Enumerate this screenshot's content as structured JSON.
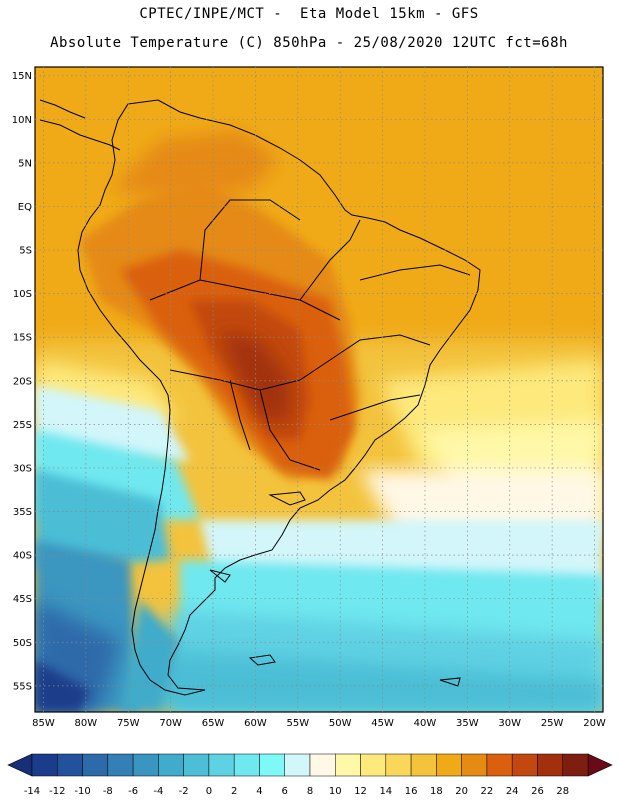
{
  "header": {
    "line1": "CPTEC/INPE/MCT -  Eta Model 15km - GFS",
    "line2": "Absolute Temperature (C) 850hPa - 25/08/2020 12UTC fct=68h"
  },
  "map": {
    "lat_labels": [
      "15N",
      "10N",
      "5N",
      "EQ",
      "5S",
      "10S",
      "15S",
      "20S",
      "25S",
      "30S",
      "35S",
      "40S",
      "45S",
      "50S",
      "55S"
    ],
    "lon_labels": [
      "85W",
      "80W",
      "75W",
      "70W",
      "65W",
      "60W",
      "55W",
      "50W",
      "45W",
      "40W",
      "35W",
      "30W",
      "25W",
      "20W"
    ],
    "extent": {
      "lon_min": -86,
      "lon_max": -19,
      "lat_min": -58,
      "lat_max": 16
    }
  },
  "colorbar": {
    "labels": [
      "-14",
      "-12",
      "-10",
      "-8",
      "-6",
      "-4",
      "-2",
      "0",
      "2",
      "4",
      "6",
      "8",
      "10",
      "12",
      "14",
      "16",
      "18",
      "20",
      "22",
      "24",
      "26",
      "28"
    ],
    "colors": [
      "#1a3c8a",
      "#23529c",
      "#2d6aaa",
      "#3480b6",
      "#3a96c0",
      "#41abcb",
      "#4cbed6",
      "#5ed1e3",
      "#6fe8ef",
      "#7ff8f8",
      "#d2f6fa",
      "#fff8e6",
      "#fff8a8",
      "#fde97c",
      "#f9d75a",
      "#f3c33c",
      "#f0aa18",
      "#e58a12",
      "#da6010",
      "#c24810",
      "#a2300c",
      "#7e1e10"
    ],
    "under_color": "#172f78",
    "over_color": "#6a0a16"
  }
}
